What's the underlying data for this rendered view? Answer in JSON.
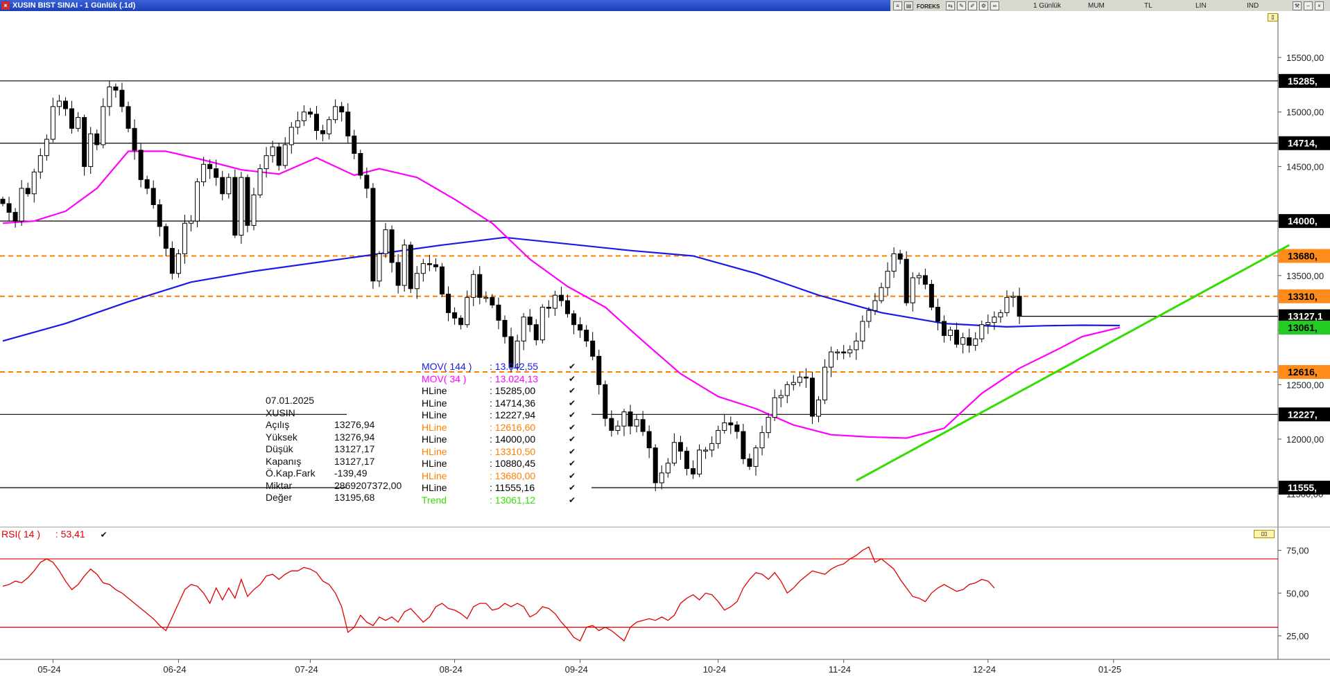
{
  "window": {
    "title": "XUSIN BIST SINAI - 1 Günlük (.1d)",
    "toolbar": {
      "brand": "FOREKS",
      "period": "1 Günlük",
      "candle": "MUM",
      "currency": "TL",
      "scale": "LIN",
      "mode": "IND"
    }
  },
  "colors": {
    "mov144": "#1a1ae6",
    "mov34": "#ff00ff",
    "hline": "#000000",
    "hline_orange": "#ff7f00",
    "trend": "#33dd00",
    "rsi": "#e00000"
  },
  "info": {
    "date": "07.01.2025",
    "symbol": "XUSIN",
    "rows": [
      {
        "label": "Açılış",
        "value": "13276,94"
      },
      {
        "label": "Yüksek",
        "value": "13276,94"
      },
      {
        "label": "Düşük",
        "value": "13127,17"
      },
      {
        "label": "Kapanış",
        "value": "13127,17"
      },
      {
        "label": "Ö.Kap.Fark",
        "value": "-139,49"
      },
      {
        "label": "Miktar",
        "value": "2869207372,00"
      },
      {
        "label": "Değer",
        "value": "13195,68"
      }
    ]
  },
  "legend": [
    {
      "name": "MOV( 144 )",
      "value": ": 13.042,55",
      "color": "#1a1ae6"
    },
    {
      "name": "MOV( 34 )",
      "value": ": 13.024,13",
      "color": "#ff00ff"
    },
    {
      "name": "HLine",
      "value": ": 15285,00",
      "color": "#000000"
    },
    {
      "name": "HLine",
      "value": ": 14714,36",
      "color": "#000000"
    },
    {
      "name": "HLine",
      "value": ": 12227,94",
      "color": "#000000"
    },
    {
      "name": "HLine",
      "value": ": 12616,60",
      "color": "#ff7f00"
    },
    {
      "name": "HLine",
      "value": ": 14000,00",
      "color": "#000000"
    },
    {
      "name": "HLine",
      "value": ": 13310,50",
      "color": "#ff7f00"
    },
    {
      "name": "HLine",
      "value": ": 10880,45",
      "color": "#000000"
    },
    {
      "name": "HLine",
      "value": ": 13680,00",
      "color": "#ff7f00"
    },
    {
      "name": "HLine",
      "value": ": 11555,16",
      "color": "#000000"
    },
    {
      "name": "Trend",
      "value": ": 13061,12",
      "color": "#33dd00"
    }
  ],
  "check_glyph": "✔",
  "chart_data": [
    {
      "type": "candlestick",
      "price_ticks": [
        "15500,00",
        "15000,00",
        "14500,00",
        "14000,00",
        "13500,00",
        "13000,00",
        "12500,00",
        "12000,00",
        "11500,00"
      ],
      "price_tick_values": [
        15500,
        15000,
        14500,
        14000,
        13500,
        13000,
        12500,
        12000,
        11500
      ],
      "ylim": [
        11200,
        15900
      ],
      "x_labels": [
        "05-24",
        "06-24",
        "07-24",
        "08-24",
        "09-24",
        "10-24",
        "11-24",
        "12-24",
        "01-25"
      ],
      "x_label_index": [
        8,
        28,
        49,
        72,
        92,
        114,
        134,
        157,
        177
      ],
      "hlines": [
        {
          "value": 15285,
          "label": "15285,",
          "color": "#000000",
          "style": "solid"
        },
        {
          "value": 14714,
          "label": "14714,",
          "color": "#000000",
          "style": "solid"
        },
        {
          "value": 14000,
          "label": "14000,",
          "color": "#000000",
          "style": "solid"
        },
        {
          "value": 13680,
          "label": "13680,",
          "color": "#ff7f00",
          "style": "dashed"
        },
        {
          "value": 13310,
          "label": "13310,",
          "color": "#ff7f00",
          "style": "dashed"
        },
        {
          "value": 12616,
          "label": "12616,",
          "color": "#ff7f00",
          "style": "dashed"
        },
        {
          "value": 12227,
          "label": "12227,",
          "color": "#000000",
          "style": "solid"
        },
        {
          "value": 11555,
          "label": "11555,",
          "color": "#000000",
          "style": "solid"
        }
      ],
      "last_price": {
        "value": 13127,
        "label": "13127,1"
      },
      "trend_marker": {
        "value": 13061,
        "label": "13061,"
      },
      "trendline": {
        "from": {
          "index": 136,
          "value": 11620
        },
        "to": {
          "index": 205,
          "value": 13780
        }
      },
      "closes": [
        14160,
        14080,
        14000,
        14300,
        14250,
        14450,
        14600,
        14750,
        15050,
        15100,
        15030,
        14850,
        14950,
        14500,
        14800,
        14700,
        15050,
        15230,
        15200,
        15050,
        14850,
        14650,
        14380,
        14300,
        14150,
        13950,
        13750,
        13520,
        13700,
        13980,
        14000,
        14360,
        14520,
        14480,
        14400,
        14250,
        14400,
        13870,
        14400,
        13960,
        14240,
        14480,
        14600,
        14680,
        14510,
        14700,
        14860,
        14920,
        15000,
        14980,
        14830,
        14800,
        14930,
        15050,
        15000,
        14780,
        14620,
        14420,
        14300,
        13450,
        13700,
        13920,
        13620,
        13410,
        13780,
        13380,
        13520,
        13610,
        13600,
        13580,
        13330,
        13160,
        13110,
        13050,
        13300,
        13510,
        13300,
        13300,
        13230,
        13090,
        12940,
        12660,
        12900,
        13120,
        13050,
        12910,
        13210,
        13200,
        13320,
        13270,
        13150,
        13050,
        13000,
        12900,
        12760,
        12500,
        12190,
        12080,
        12120,
        12250,
        12120,
        12180,
        12070,
        11920,
        11600,
        11690,
        11780,
        11970,
        11890,
        11730,
        11680,
        11900,
        11900,
        11960,
        12080,
        12150,
        12130,
        12070,
        11820,
        11750,
        11920,
        12060,
        12200,
        12380,
        12400,
        12500,
        12520,
        12570,
        12560,
        12210,
        12360,
        12660,
        12800,
        12800,
        12790,
        12820,
        12900,
        13080,
        13180,
        13270,
        13390,
        13540,
        13700,
        13650,
        13250,
        13480,
        13500,
        13420,
        13210,
        13080,
        12950,
        13000,
        12870,
        12930,
        12860,
        12920,
        13050,
        13070,
        13120,
        13160,
        13300,
        13310,
        13127
      ],
      "ma144": {
        "name": "MOV( 144 )",
        "x": [
          0,
          10,
          20,
          30,
          40,
          50,
          60,
          70,
          80,
          90,
          100,
          110,
          120,
          130,
          140,
          150,
          160,
          166,
          172,
          178
        ],
        "values": [
          12900,
          13060,
          13260,
          13440,
          13540,
          13620,
          13700,
          13780,
          13850,
          13790,
          13730,
          13680,
          13520,
          13320,
          13160,
          13060,
          13030,
          13040,
          13045,
          13042
        ]
      },
      "ma34": {
        "name": "MOV( 34 )",
        "x": [
          0,
          5,
          10,
          15,
          20,
          26,
          32,
          38,
          44,
          50,
          56,
          60,
          66,
          72,
          78,
          84,
          90,
          96,
          102,
          108,
          114,
          120,
          126,
          132,
          138,
          144,
          150,
          156,
          162,
          168,
          172,
          178
        ],
        "values": [
          13980,
          14000,
          14090,
          14300,
          14640,
          14640,
          14560,
          14470,
          14430,
          14580,
          14420,
          14480,
          14400,
          14200,
          13980,
          13650,
          13400,
          13210,
          12900,
          12600,
          12390,
          12280,
          12130,
          12040,
          12020,
          12010,
          12100,
          12420,
          12650,
          12820,
          12940,
          13024
        ]
      }
    },
    {
      "type": "line",
      "legend_name": "RSI( 14 )",
      "legend_value": ": 53,41",
      "ticks": [
        "75,00",
        "50,00",
        "25,00"
      ],
      "tick_values": [
        75,
        50,
        25
      ],
      "ylim": [
        12,
        87
      ],
      "bands": [
        70,
        30
      ],
      "values": [
        54,
        55,
        57,
        56,
        59,
        63,
        68,
        70,
        68,
        63,
        57,
        52,
        55,
        60,
        64,
        61,
        56,
        55,
        52,
        50,
        47,
        44,
        41,
        38,
        35,
        31,
        28,
        36,
        44,
        52,
        55,
        54,
        50,
        44,
        53,
        46,
        53,
        47,
        58,
        48,
        52,
        55,
        60,
        61,
        58,
        61,
        63,
        63,
        65,
        64,
        62,
        57,
        55,
        50,
        42,
        27,
        30,
        37,
        33,
        31,
        36,
        34,
        36,
        33,
        39,
        41,
        37,
        33,
        36,
        42,
        44,
        41,
        40,
        38,
        35,
        42,
        44,
        44,
        40,
        41,
        44,
        42,
        44,
        42,
        36,
        38,
        42,
        41,
        38,
        33,
        29,
        24,
        22,
        30,
        31,
        28,
        30,
        28,
        25,
        22,
        30,
        33,
        34,
        35,
        34,
        36,
        34,
        37,
        44,
        47,
        49,
        46,
        50,
        49,
        45,
        40,
        42,
        45,
        53,
        58,
        62,
        61,
        58,
        62,
        57,
        50,
        53,
        57,
        60,
        63,
        62,
        61,
        64,
        66,
        67,
        70,
        72,
        75,
        77,
        68,
        70,
        67,
        64,
        58,
        53,
        48,
        47,
        45,
        50,
        53,
        55,
        53,
        51,
        52,
        55,
        56,
        58,
        57,
        53
      ]
    }
  ]
}
